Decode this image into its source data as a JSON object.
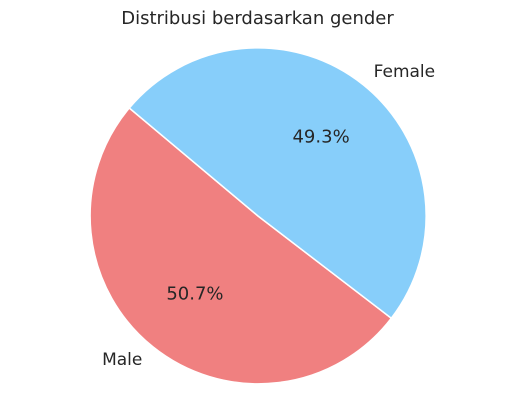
{
  "chart_data": {
    "type": "pie",
    "title": "Distribusi berdasarkan gender",
    "categories": [
      "Male",
      "Female"
    ],
    "values": [
      50.7,
      49.3
    ],
    "percent_labels": [
      "50.7%",
      "49.3%"
    ],
    "colors": [
      "#f08080",
      "#87cefa"
    ],
    "start_angle_deg": 140,
    "direction": "counterclockwise",
    "xlabel": "",
    "ylabel": ""
  }
}
